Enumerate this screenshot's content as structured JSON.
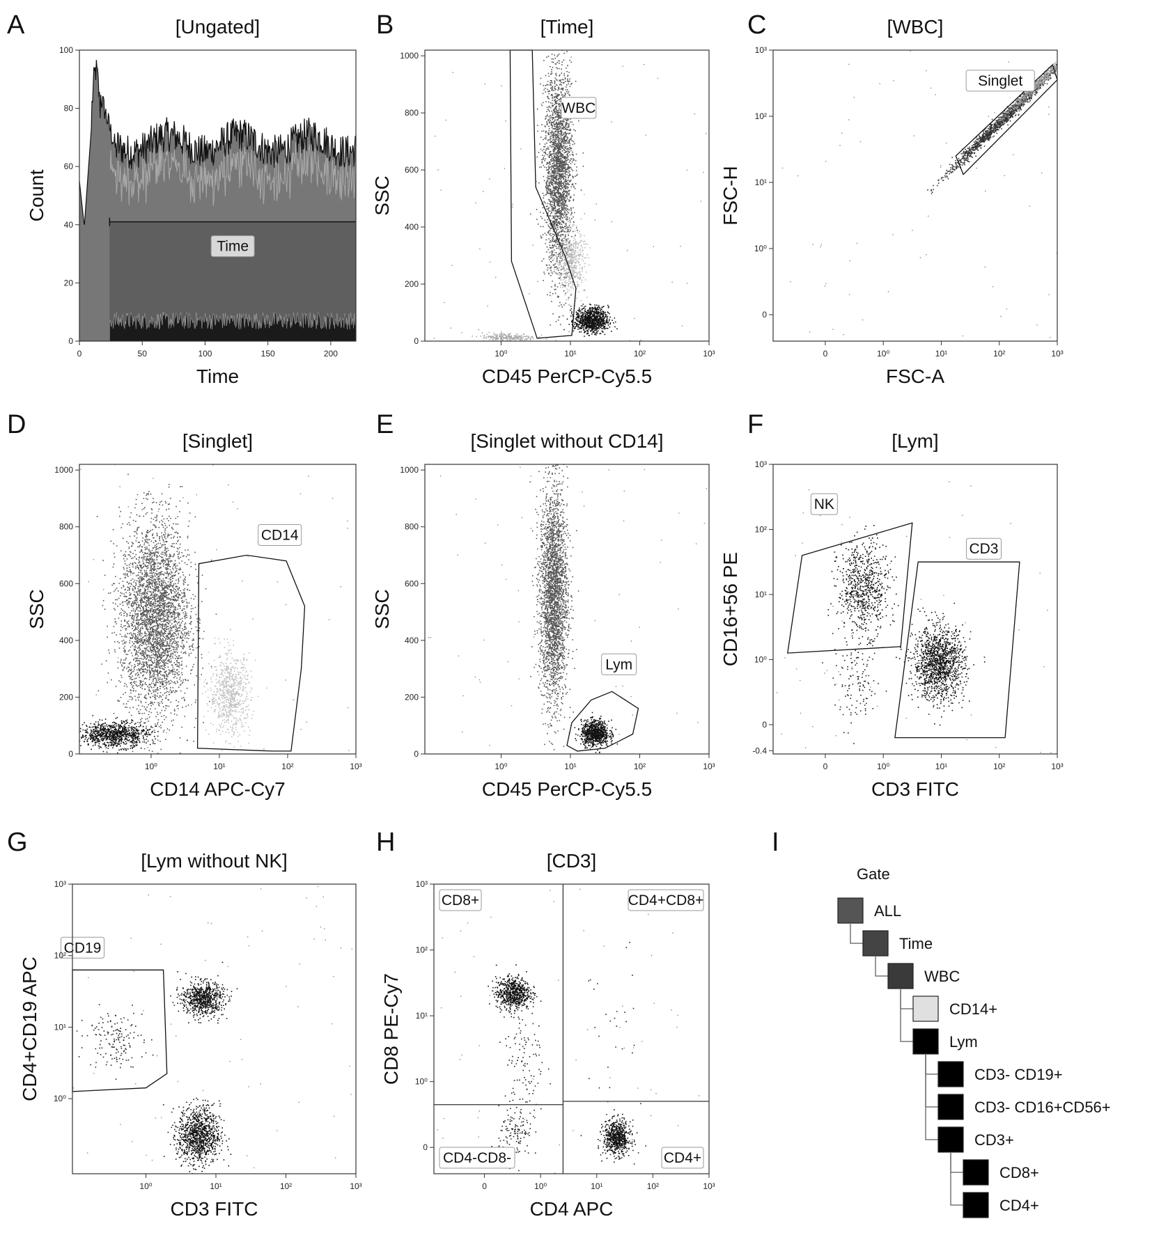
{
  "chart_data": [
    {
      "panel": "A",
      "type": "histogram",
      "title": "[Ungated]",
      "xlabel": "Time",
      "ylabel": "Count",
      "xticks": [
        "0",
        "50",
        "100",
        "150",
        "200"
      ],
      "xticks_v": [
        0,
        50,
        100,
        150,
        200
      ],
      "yticks": [
        "0",
        "20",
        "40",
        "60",
        "80",
        "100"
      ],
      "yticks_v": [
        0,
        20,
        40,
        60,
        80,
        100
      ],
      "xlim": [
        0,
        220
      ],
      "ylim": [
        0,
        100
      ],
      "gate": {
        "name": "Time",
        "x_range": [
          24,
          220
        ],
        "level": 41
      }
    },
    {
      "panel": "B",
      "type": "scatter",
      "title": "[Time]",
      "xlabel": "CD45 PerCP-Cy5.5",
      "ylabel": "SSC",
      "xticks": [
        "10⁰",
        "10¹",
        "10²",
        "10³"
      ],
      "xticks_v": [
        0,
        1,
        2,
        3
      ],
      "yticks": [
        "0",
        "200",
        "400",
        "600",
        "800",
        "1000"
      ],
      "yticks_v": [
        0,
        200,
        400,
        600,
        800,
        1000
      ],
      "xlim": [
        -1.1,
        3
      ],
      "ylim": [
        0,
        1020
      ],
      "gates": [
        {
          "name": "WBC",
          "polygon": [
            [
              0.13,
              1020
            ],
            [
              0.15,
              280
            ],
            [
              0.52,
              10
            ],
            [
              1.02,
              20
            ],
            [
              1.08,
              185
            ],
            [
              0.92,
              300
            ],
            [
              0.5,
              540
            ],
            [
              0.45,
              1020
            ]
          ]
        }
      ],
      "clusters": [
        {
          "cx": 0.82,
          "cy": 600,
          "sx": 0.1,
          "sy": 180,
          "n": 2600,
          "color": "#555555"
        },
        {
          "cx": 1.0,
          "cy": 280,
          "sx": 0.1,
          "sy": 55,
          "n": 500,
          "color": "#b8b8b8"
        },
        {
          "cx": 1.3,
          "cy": 75,
          "sx": 0.12,
          "sy": 22,
          "n": 900,
          "color": "#111111"
        },
        {
          "cx": 0.1,
          "cy": 15,
          "sx": 0.2,
          "sy": 8,
          "n": 250,
          "color": "#aaaaaa"
        }
      ]
    },
    {
      "panel": "C",
      "type": "scatter",
      "title": "[WBC]",
      "xlabel": "FSC-A",
      "ylabel": "FSC-H",
      "xticks": [
        "0",
        "10⁰",
        "10¹",
        "10²",
        "10³"
      ],
      "xticks_v": [
        -1,
        0,
        1,
        2,
        3
      ],
      "yticks": [
        "0",
        "10⁰",
        "10¹",
        "10²",
        "10³"
      ],
      "yticks_v": [
        -1,
        0,
        1,
        2,
        3
      ],
      "xlim": [
        -1.9,
        3
      ],
      "ylim": [
        -1.4,
        3
      ],
      "gates": [
        {
          "name": "Singlet",
          "polygon": [
            [
              1.25,
              1.4
            ],
            [
              2.92,
              2.78
            ],
            [
              3.0,
              2.55
            ],
            [
              1.38,
              1.12
            ]
          ]
        }
      ],
      "clusters": [
        {
          "cx": 2.05,
          "cy": 1.95,
          "sx": 0.2,
          "sy": 0.05,
          "n": 1400,
          "color": "#333333",
          "diag": 0.85
        },
        {
          "cx": 2.6,
          "cy": 2.45,
          "sx": 0.15,
          "sy": 0.04,
          "n": 500,
          "color": "#999999",
          "diag": 0.85
        }
      ]
    },
    {
      "panel": "D",
      "type": "scatter",
      "title": "[Singlet]",
      "xlabel": "CD14 APC-Cy7",
      "ylabel": "SSC",
      "xticks": [
        "10⁰",
        "10¹",
        "10²",
        "10³"
      ],
      "xticks_v": [
        0,
        1,
        2,
        3
      ],
      "yticks": [
        "0",
        "200",
        "400",
        "600",
        "800",
        "1000"
      ],
      "yticks_v": [
        0,
        200,
        400,
        600,
        800,
        1000
      ],
      "xlim": [
        -1.05,
        3
      ],
      "ylim": [
        0,
        1020
      ],
      "gates": [
        {
          "name": "CD14",
          "polygon": [
            [
              0.68,
              20
            ],
            [
              0.7,
              670
            ],
            [
              1.4,
              700
            ],
            [
              1.98,
              680
            ],
            [
              2.25,
              520
            ],
            [
              2.2,
              300
            ],
            [
              2.05,
              10
            ],
            [
              1.78,
              10
            ]
          ]
        }
      ],
      "clusters": [
        {
          "cx": 0.05,
          "cy": 480,
          "sx": 0.25,
          "sy": 170,
          "n": 3600,
          "color": "#555555"
        },
        {
          "cx": -0.55,
          "cy": 70,
          "sx": 0.25,
          "sy": 22,
          "n": 900,
          "color": "#111111"
        },
        {
          "cx": 1.15,
          "cy": 210,
          "sx": 0.15,
          "sy": 70,
          "n": 700,
          "color": "#c0c0c0"
        }
      ]
    },
    {
      "panel": "E",
      "type": "scatter",
      "title": "[Singlet without CD14]",
      "xlabel": "CD45 PerCP-Cy5.5",
      "ylabel": "SSC",
      "xticks": [
        "10⁰",
        "10¹",
        "10²",
        "10³"
      ],
      "xticks_v": [
        0,
        1,
        2,
        3
      ],
      "yticks": [
        "0",
        "200",
        "400",
        "600",
        "800",
        "1000"
      ],
      "yticks_v": [
        0,
        200,
        400,
        600,
        800,
        1000
      ],
      "xlim": [
        -1.1,
        3
      ],
      "ylim": [
        0,
        1020
      ],
      "gates": [
        {
          "name": "Lym",
          "polygon": [
            [
              0.95,
              30
            ],
            [
              1.02,
              110
            ],
            [
              1.3,
              190
            ],
            [
              1.6,
              220
            ],
            [
              1.98,
              160
            ],
            [
              1.9,
              70
            ],
            [
              1.5,
              20
            ],
            [
              1.1,
              10
            ]
          ]
        }
      ],
      "clusters": [
        {
          "cx": 0.75,
          "cy": 560,
          "sx": 0.1,
          "sy": 190,
          "n": 2700,
          "color": "#555555"
        },
        {
          "cx": 1.35,
          "cy": 75,
          "sx": 0.1,
          "sy": 22,
          "n": 800,
          "color": "#111111"
        }
      ]
    },
    {
      "panel": "F",
      "type": "scatter",
      "title": "[Lym]",
      "xlabel": "CD3 FITC",
      "ylabel": "CD16+56 PE",
      "xticks": [
        "0",
        "10⁰",
        "10¹",
        "10²",
        "10³"
      ],
      "xticks_v": [
        -1,
        0,
        1,
        2,
        3
      ],
      "yticks": [
        "-0.4",
        "0",
        "10⁰",
        "10¹",
        "10²",
        "10³"
      ],
      "yticks_v": [
        -1.4,
        -1,
        0,
        1,
        2,
        3
      ],
      "xlim": [
        -1.9,
        3
      ],
      "ylim": [
        -1.45,
        3
      ],
      "gates": [
        {
          "name": "NK",
          "polygon": [
            [
              -1.65,
              0.1
            ],
            [
              -1.4,
              1.6
            ],
            [
              0.5,
              2.1
            ],
            [
              0.3,
              0.2
            ]
          ]
        },
        {
          "name": "CD3",
          "polygon": [
            [
              0.2,
              -1.2
            ],
            [
              0.6,
              1.5
            ],
            [
              2.35,
              1.5
            ],
            [
              2.1,
              -1.2
            ]
          ]
        }
      ],
      "clusters": [
        {
          "cx": -0.35,
          "cy": 1.1,
          "sx": 0.22,
          "sy": 0.35,
          "n": 700,
          "color": "#111111"
        },
        {
          "cx": 0.95,
          "cy": -0.05,
          "sx": 0.22,
          "sy": 0.28,
          "n": 1300,
          "color": "#111111"
        },
        {
          "cx": -0.45,
          "cy": -0.4,
          "sx": 0.2,
          "sy": 0.3,
          "n": 120,
          "color": "#222222"
        }
      ]
    },
    {
      "panel": "G",
      "type": "scatter",
      "title": "[Lym without NK]",
      "xlabel": "CD3 FITC",
      "ylabel": "CD4+CD19 APC",
      "xticks": [
        "10⁰",
        "10¹",
        "10²",
        "10³"
      ],
      "xticks_v": [
        0,
        1,
        2,
        3
      ],
      "yticks": [
        "10⁰",
        "10¹",
        "10²",
        "10³"
      ],
      "yticks_v": [
        0,
        1,
        2,
        3
      ],
      "xlim": [
        -1.05,
        3
      ],
      "ylim": [
        -1.05,
        3
      ],
      "gates": [
        {
          "name": "CD19",
          "polygon": [
            [
              -1.05,
              1.8
            ],
            [
              -0.6,
              1.8
            ],
            [
              0.25,
              1.8
            ],
            [
              0.3,
              0.35
            ],
            [
              0.0,
              0.15
            ],
            [
              -1.05,
              0.1
            ]
          ]
        }
      ],
      "clusters": [
        {
          "cx": -0.45,
          "cy": 0.85,
          "sx": 0.2,
          "sy": 0.2,
          "n": 150,
          "color": "#222222"
        },
        {
          "cx": 0.8,
          "cy": 1.4,
          "sx": 0.15,
          "sy": 0.12,
          "n": 700,
          "color": "#111111"
        },
        {
          "cx": 0.75,
          "cy": -0.5,
          "sx": 0.15,
          "sy": 0.2,
          "n": 1000,
          "color": "#111111"
        }
      ]
    },
    {
      "panel": "H",
      "type": "scatter",
      "title": "[CD3]",
      "xlabel": "CD4 APC",
      "ylabel": "CD8 PE-Cy7",
      "xticks": [
        "0",
        "10⁰",
        "10¹",
        "10²",
        "10³"
      ],
      "xticks_v": [
        -1,
        0,
        1,
        2,
        3
      ],
      "yticks": [
        "0",
        "10⁰",
        "10¹",
        "10²",
        "10³"
      ],
      "yticks_v": [
        -1,
        0,
        1,
        2,
        3
      ],
      "xlim": [
        -1.9,
        3
      ],
      "ylim": [
        -1.4,
        3
      ],
      "quadrants": {
        "x_split": 0.4,
        "y_split_left": -0.35,
        "y_split_right": -0.3,
        "labels": [
          "CD8+",
          "CD4+CD8+",
          "CD4-CD8-",
          "CD4+"
        ]
      },
      "clusters": [
        {
          "cx": -0.5,
          "cy": 1.35,
          "sx": 0.15,
          "sy": 0.12,
          "n": 650,
          "color": "#111111"
        },
        {
          "cx": -0.3,
          "cy": 0.3,
          "sx": 0.18,
          "sy": 0.55,
          "n": 120,
          "color": "#222222"
        },
        {
          "cx": -0.45,
          "cy": -0.8,
          "sx": 0.15,
          "sy": 0.2,
          "n": 120,
          "color": "#222222"
        },
        {
          "cx": 1.35,
          "cy": -0.85,
          "sx": 0.12,
          "sy": 0.13,
          "n": 650,
          "color": "#111111"
        },
        {
          "cx": 1.2,
          "cy": 0.6,
          "sx": 0.25,
          "sy": 0.8,
          "n": 30,
          "color": "#222222"
        }
      ]
    }
  ],
  "panel_i": {
    "label": "I",
    "heading": "Gate",
    "nodes": [
      {
        "label": "ALL",
        "depth": 0,
        "color": "#555555"
      },
      {
        "label": "Time",
        "depth": 1,
        "color": "#444444"
      },
      {
        "label": "WBC",
        "depth": 2,
        "color": "#3a3a3a"
      },
      {
        "label": "CD14+",
        "depth": 3,
        "color": "#e0e0e0"
      },
      {
        "label": "Lym",
        "depth": 3,
        "color": "#000000"
      },
      {
        "label": "CD3- CD19+",
        "depth": 4,
        "color": "#000000"
      },
      {
        "label": "CD3- CD16+CD56+",
        "depth": 4,
        "color": "#000000"
      },
      {
        "label": "CD3+",
        "depth": 4,
        "color": "#000000"
      },
      {
        "label": "CD8+",
        "depth": 5,
        "color": "#000000"
      },
      {
        "label": "CD4+",
        "depth": 5,
        "color": "#000000"
      }
    ]
  }
}
